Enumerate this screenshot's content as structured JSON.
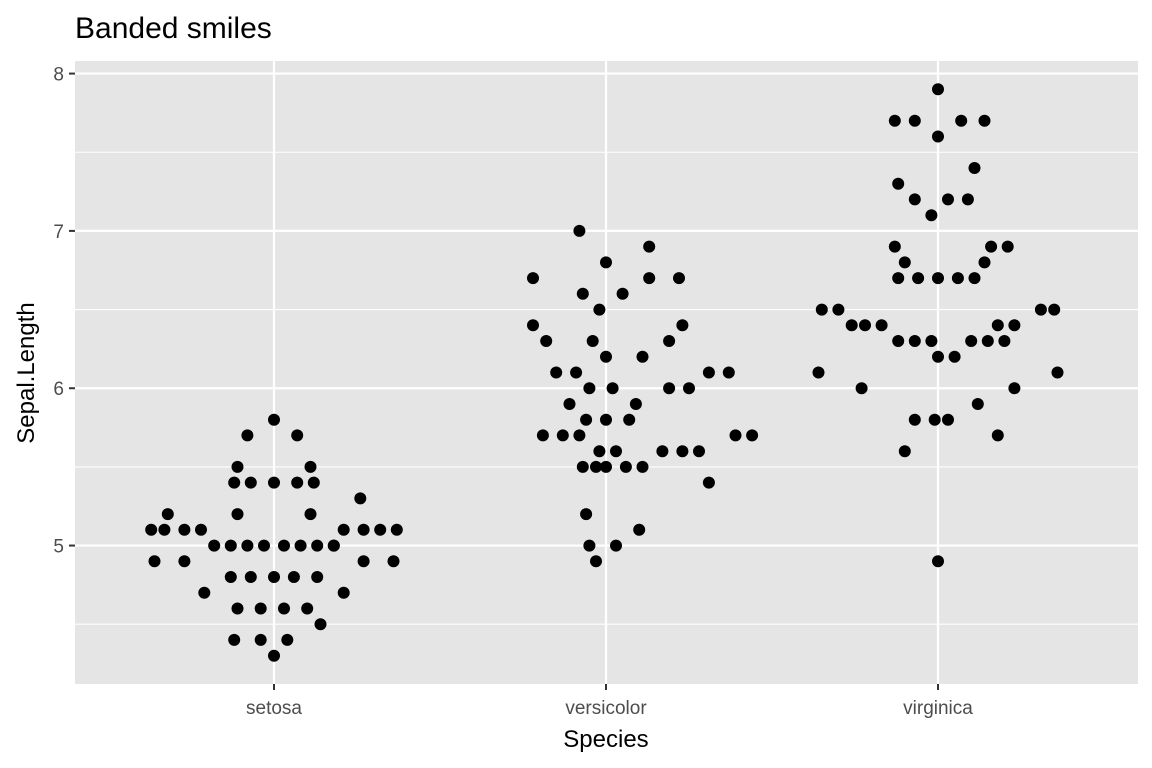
{
  "chart_data": {
    "type": "scatter",
    "title": "Banded smiles",
    "xlabel": "Species",
    "ylabel": "Sepal.Length",
    "categories": [
      "setosa",
      "versicolor",
      "virginica"
    ],
    "yticks": [
      5,
      6,
      7,
      8
    ],
    "ylim": [
      4.12,
      8.08
    ],
    "grid": true,
    "legend": "none",
    "colors": {
      "panel": "#e5e5e5",
      "grid": "#ffffff",
      "point": "#000000",
      "tick_label": "#4d4d4d"
    },
    "series": [
      {
        "category": "setosa",
        "points": [
          {
            "x": -0.37,
            "y": 5.1
          },
          {
            "x": -0.33,
            "y": 5.1
          },
          {
            "x": -0.27,
            "y": 5.1
          },
          {
            "x": -0.22,
            "y": 5.1
          },
          {
            "x": 0.21,
            "y": 5.1
          },
          {
            "x": 0.27,
            "y": 5.1
          },
          {
            "x": 0.32,
            "y": 5.1
          },
          {
            "x": 0.37,
            "y": 5.1
          },
          {
            "x": -0.32,
            "y": 5.2
          },
          {
            "x": -0.11,
            "y": 5.2
          },
          {
            "x": 0.11,
            "y": 5.2
          },
          {
            "x": -0.36,
            "y": 4.9
          },
          {
            "x": -0.27,
            "y": 4.9
          },
          {
            "x": 0.27,
            "y": 4.9
          },
          {
            "x": 0.36,
            "y": 4.9
          },
          {
            "x": -0.18,
            "y": 5.0
          },
          {
            "x": -0.13,
            "y": 5.0
          },
          {
            "x": -0.08,
            "y": 5.0
          },
          {
            "x": -0.03,
            "y": 5.0
          },
          {
            "x": 0.03,
            "y": 5.0
          },
          {
            "x": 0.08,
            "y": 5.0
          },
          {
            "x": 0.13,
            "y": 5.0
          },
          {
            "x": 0.18,
            "y": 5.0
          },
          {
            "x": 0.18,
            "y": 5.0
          },
          {
            "x": -0.21,
            "y": 4.7
          },
          {
            "x": 0.21,
            "y": 4.7
          },
          {
            "x": -0.13,
            "y": 4.8
          },
          {
            "x": -0.07,
            "y": 4.8
          },
          {
            "x": 0.0,
            "y": 4.8
          },
          {
            "x": 0.06,
            "y": 4.8
          },
          {
            "x": 0.13,
            "y": 4.8
          },
          {
            "x": -0.11,
            "y": 4.6
          },
          {
            "x": -0.04,
            "y": 4.6
          },
          {
            "x": 0.03,
            "y": 4.6
          },
          {
            "x": 0.1,
            "y": 4.6
          },
          {
            "x": 0.14,
            "y": 4.5
          },
          {
            "x": -0.12,
            "y": 4.4
          },
          {
            "x": -0.04,
            "y": 4.4
          },
          {
            "x": 0.04,
            "y": 4.4
          },
          {
            "x": 0.0,
            "y": 4.3
          },
          {
            "x": -0.12,
            "y": 5.4
          },
          {
            "x": -0.07,
            "y": 5.4
          },
          {
            "x": 0.0,
            "y": 5.4
          },
          {
            "x": 0.07,
            "y": 5.4
          },
          {
            "x": 0.12,
            "y": 5.4
          },
          {
            "x": -0.11,
            "y": 5.5
          },
          {
            "x": 0.11,
            "y": 5.5
          },
          {
            "x": -0.08,
            "y": 5.7
          },
          {
            "x": 0.07,
            "y": 5.7
          },
          {
            "x": 0.0,
            "y": 5.8
          },
          {
            "x": 0.26,
            "y": 5.3
          }
        ]
      },
      {
        "category": "versicolor",
        "points": [
          {
            "x": 0.81,
            "y": 5.7
          },
          {
            "x": 0.87,
            "y": 5.7
          },
          {
            "x": 0.92,
            "y": 5.7
          },
          {
            "x": 1.39,
            "y": 5.7
          },
          {
            "x": 1.44,
            "y": 5.7
          },
          {
            "x": 0.85,
            "y": 6.1
          },
          {
            "x": 0.91,
            "y": 6.1
          },
          {
            "x": 1.31,
            "y": 6.1
          },
          {
            "x": 1.37,
            "y": 6.1
          },
          {
            "x": 0.95,
            "y": 6.0
          },
          {
            "x": 1.02,
            "y": 6.0
          },
          {
            "x": 1.19,
            "y": 6.0
          },
          {
            "x": 1.25,
            "y": 6.0
          },
          {
            "x": 0.98,
            "y": 5.6
          },
          {
            "x": 1.03,
            "y": 5.6
          },
          {
            "x": 1.17,
            "y": 5.6
          },
          {
            "x": 1.23,
            "y": 5.6
          },
          {
            "x": 1.28,
            "y": 5.6
          },
          {
            "x": 1.31,
            "y": 5.4
          },
          {
            "x": 1.09,
            "y": 5.9
          },
          {
            "x": 0.89,
            "y": 5.9
          },
          {
            "x": 0.94,
            "y": 5.8
          },
          {
            "x": 1.0,
            "y": 5.8
          },
          {
            "x": 1.07,
            "y": 5.8
          },
          {
            "x": 0.93,
            "y": 5.5
          },
          {
            "x": 0.97,
            "y": 5.5
          },
          {
            "x": 1.0,
            "y": 5.5
          },
          {
            "x": 1.06,
            "y": 5.5
          },
          {
            "x": 1.11,
            "y": 5.5
          },
          {
            "x": 0.94,
            "y": 5.2
          },
          {
            "x": 0.95,
            "y": 5.0
          },
          {
            "x": 1.03,
            "y": 5.0
          },
          {
            "x": 0.97,
            "y": 4.9
          },
          {
            "x": 1.1,
            "y": 5.1
          },
          {
            "x": 0.78,
            "y": 6.4
          },
          {
            "x": 1.23,
            "y": 6.4
          },
          {
            "x": 0.82,
            "y": 6.3
          },
          {
            "x": 0.96,
            "y": 6.3
          },
          {
            "x": 1.19,
            "y": 6.3
          },
          {
            "x": 0.93,
            "y": 6.6
          },
          {
            "x": 1.05,
            "y": 6.6
          },
          {
            "x": 0.98,
            "y": 6.5
          },
          {
            "x": 0.78,
            "y": 6.7
          },
          {
            "x": 1.13,
            "y": 6.7
          },
          {
            "x": 1.22,
            "y": 6.7
          },
          {
            "x": 1.0,
            "y": 6.8
          },
          {
            "x": 1.13,
            "y": 6.9
          },
          {
            "x": 0.92,
            "y": 7.0
          },
          {
            "x": 1.0,
            "y": 6.2
          },
          {
            "x": 1.11,
            "y": 6.2
          }
        ]
      },
      {
        "category": "virginica",
        "points": [
          {
            "x": 1.64,
            "y": 6.1
          },
          {
            "x": 2.36,
            "y": 6.1
          },
          {
            "x": 1.65,
            "y": 6.5
          },
          {
            "x": 1.7,
            "y": 6.5
          },
          {
            "x": 2.31,
            "y": 6.5
          },
          {
            "x": 2.35,
            "y": 6.5
          },
          {
            "x": 1.74,
            "y": 6.4
          },
          {
            "x": 1.78,
            "y": 6.4
          },
          {
            "x": 1.83,
            "y": 6.4
          },
          {
            "x": 2.18,
            "y": 6.4
          },
          {
            "x": 2.23,
            "y": 6.4
          },
          {
            "x": 1.88,
            "y": 6.3
          },
          {
            "x": 1.93,
            "y": 6.3
          },
          {
            "x": 1.98,
            "y": 6.3
          },
          {
            "x": 2.1,
            "y": 6.3
          },
          {
            "x": 2.15,
            "y": 6.3
          },
          {
            "x": 2.2,
            "y": 6.3
          },
          {
            "x": 1.77,
            "y": 6.0
          },
          {
            "x": 2.23,
            "y": 6.0
          },
          {
            "x": 2.0,
            "y": 6.2
          },
          {
            "x": 2.05,
            "y": 6.2
          },
          {
            "x": 1.93,
            "y": 5.8
          },
          {
            "x": 1.99,
            "y": 5.8
          },
          {
            "x": 2.03,
            "y": 5.8
          },
          {
            "x": 2.12,
            "y": 5.9
          },
          {
            "x": 1.9,
            "y": 5.6
          },
          {
            "x": 2.18,
            "y": 5.7
          },
          {
            "x": 2.0,
            "y": 4.9
          },
          {
            "x": 1.87,
            "y": 6.9
          },
          {
            "x": 2.16,
            "y": 6.9
          },
          {
            "x": 2.21,
            "y": 6.9
          },
          {
            "x": 1.9,
            "y": 6.8
          },
          {
            "x": 2.14,
            "y": 6.8
          },
          {
            "x": 1.88,
            "y": 6.7
          },
          {
            "x": 1.94,
            "y": 6.7
          },
          {
            "x": 2.0,
            "y": 6.7
          },
          {
            "x": 2.06,
            "y": 6.7
          },
          {
            "x": 2.11,
            "y": 6.7
          },
          {
            "x": 1.88,
            "y": 7.3
          },
          {
            "x": 1.93,
            "y": 7.2
          },
          {
            "x": 2.03,
            "y": 7.2
          },
          {
            "x": 2.09,
            "y": 7.2
          },
          {
            "x": 1.98,
            "y": 7.1
          },
          {
            "x": 2.11,
            "y": 7.4
          },
          {
            "x": 1.87,
            "y": 7.7
          },
          {
            "x": 1.93,
            "y": 7.7
          },
          {
            "x": 2.07,
            "y": 7.7
          },
          {
            "x": 2.14,
            "y": 7.7
          },
          {
            "x": 2.0,
            "y": 7.6
          },
          {
            "x": 2.0,
            "y": 7.9
          }
        ]
      }
    ]
  }
}
